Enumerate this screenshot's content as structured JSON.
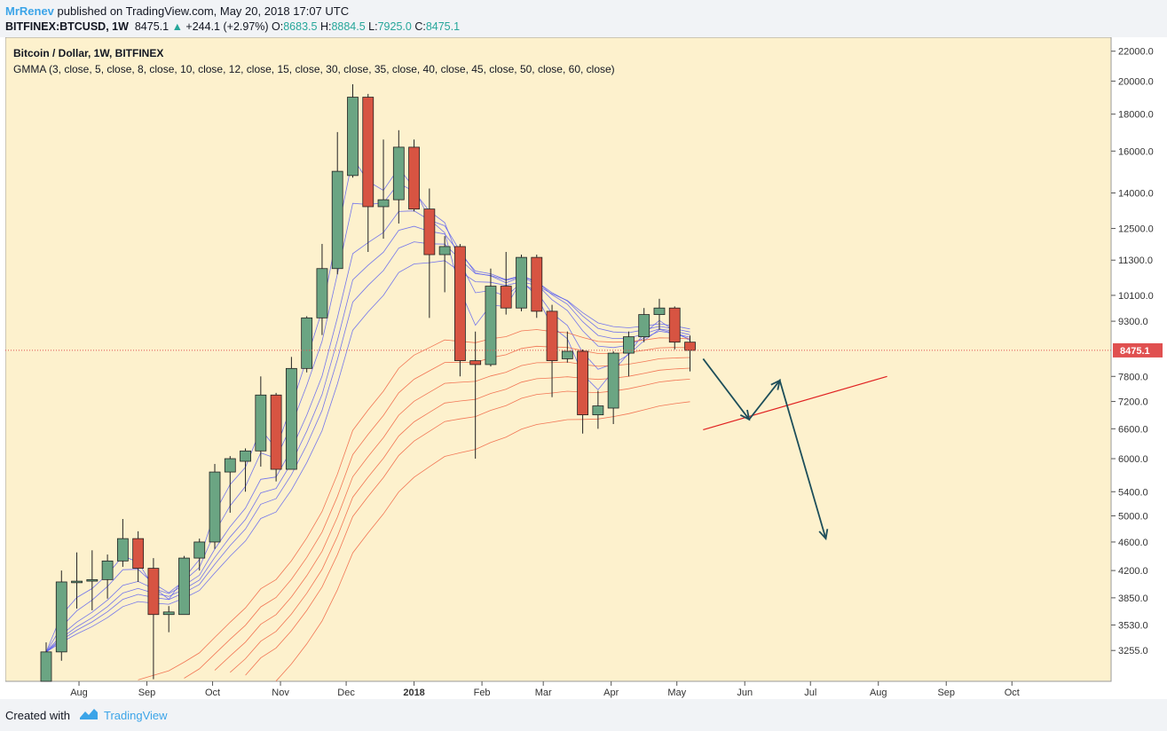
{
  "header": {
    "author": "MrRenev",
    "published_text": "published on TradingView.com, May 20, 2018 17:07 UTC",
    "symbol": "BITFINEX:BTCUSD, 1W",
    "last_price": "8475.1",
    "change": "+244.1 (+2.97%)",
    "open_label": "O:",
    "open_value": "8683.5",
    "high_label": "H:",
    "high_value": "8884.5",
    "low_label": "L:",
    "low_value": "7925.0",
    "close_label": "C:",
    "close_value": "8475.1"
  },
  "footer": {
    "created_label": "Created with",
    "brand": "TradingView"
  },
  "colors": {
    "background": "#fdf1cd",
    "up_candle": "#6ba583",
    "down_candle": "#d75442",
    "fast_ma": "#5a5ff0",
    "slow_ma": "#f06040",
    "projection": "#1d4e5a",
    "trendline": "#e02020",
    "price_line": "#e05050"
  },
  "chart_data": {
    "type": "candlestick",
    "title": "Bitcoin / Dollar, 1W, BITFINEX",
    "indicator": "GMMA (3, close, 5, close, 8, close, 10, close, 12, close, 15, close, 30, close, 35, close, 40, close, 45, close, 50, close, 60, close)",
    "y_scale": "log",
    "ylim": [
      2950,
      23000
    ],
    "y_ticks": [
      "22000.0",
      "20000.0",
      "18000.0",
      "16000.0",
      "14000.0",
      "12500.0",
      "11300.0",
      "10100.0",
      "9300.0",
      "8475.1",
      "7800.0",
      "7200.0",
      "6600.0",
      "6000.0",
      "5400.0",
      "5000.0",
      "4600.0",
      "4200.0",
      "3850.0",
      "3530.0",
      "3255.0"
    ],
    "x_ticks": [
      "Aug",
      "Sep",
      "Oct",
      "Nov",
      "Dec",
      "2018",
      "Feb",
      "Mar",
      "Apr",
      "May",
      "Jun",
      "Jul",
      "Aug",
      "Sep",
      "Oct"
    ],
    "last_price_label": "8475.1",
    "candles": [
      {
        "date": "2017-07-17",
        "o": 2730,
        "h": 3340,
        "l": 2900,
        "c": 3240
      },
      {
        "date": "2017-07-24",
        "o": 3240,
        "h": 4200,
        "l": 3150,
        "c": 4050
      },
      {
        "date": "2017-07-31",
        "o": 4040,
        "h": 4450,
        "l": 3720,
        "c": 4060
      },
      {
        "date": "2017-08-07",
        "o": 4060,
        "h": 4480,
        "l": 3700,
        "c": 4080
      },
      {
        "date": "2017-08-14",
        "o": 4080,
        "h": 4420,
        "l": 3840,
        "c": 4330
      },
      {
        "date": "2017-08-21",
        "o": 4330,
        "h": 4950,
        "l": 4250,
        "c": 4650
      },
      {
        "date": "2017-08-28",
        "o": 4650,
        "h": 4760,
        "l": 4050,
        "c": 4230
      },
      {
        "date": "2017-09-04",
        "o": 4230,
        "h": 4370,
        "l": 2970,
        "c": 3650
      },
      {
        "date": "2017-09-11",
        "o": 3650,
        "h": 3750,
        "l": 3450,
        "c": 3680
      },
      {
        "date": "2017-09-18",
        "o": 3650,
        "h": 4400,
        "l": 3650,
        "c": 4370
      },
      {
        "date": "2017-09-25",
        "o": 4370,
        "h": 4650,
        "l": 4200,
        "c": 4600
      },
      {
        "date": "2017-10-02",
        "o": 4600,
        "h": 5900,
        "l": 4500,
        "c": 5750
      },
      {
        "date": "2017-10-09",
        "o": 5750,
        "h": 6050,
        "l": 5050,
        "c": 6000
      },
      {
        "date": "2017-10-16",
        "o": 5950,
        "h": 6200,
        "l": 5400,
        "c": 6150
      },
      {
        "date": "2017-10-23",
        "o": 6150,
        "h": 7800,
        "l": 5850,
        "c": 7350
      },
      {
        "date": "2017-10-30",
        "o": 7350,
        "h": 7400,
        "l": 5580,
        "c": 5800
      },
      {
        "date": "2017-11-06",
        "o": 5800,
        "h": 8300,
        "l": 5800,
        "c": 8000
      },
      {
        "date": "2017-11-13",
        "o": 8000,
        "h": 9450,
        "l": 7900,
        "c": 9400
      },
      {
        "date": "2017-11-20",
        "o": 9400,
        "h": 11900,
        "l": 8900,
        "c": 11000
      },
      {
        "date": "2017-11-27",
        "o": 11000,
        "h": 17000,
        "l": 10800,
        "c": 15000
      },
      {
        "date": "2017-12-04",
        "o": 14800,
        "h": 19800,
        "l": 14700,
        "c": 19000
      },
      {
        "date": "2017-12-11",
        "o": 19000,
        "h": 19200,
        "l": 11600,
        "c": 13400
      },
      {
        "date": "2017-12-18",
        "o": 13400,
        "h": 16600,
        "l": 12100,
        "c": 13700
      },
      {
        "date": "2017-12-25",
        "o": 13700,
        "h": 17100,
        "l": 12700,
        "c": 16200
      },
      {
        "date": "2018-01-01",
        "o": 16200,
        "h": 16600,
        "l": 13200,
        "c": 13300
      },
      {
        "date": "2018-01-08",
        "o": 13300,
        "h": 14200,
        "l": 9400,
        "c": 11500
      },
      {
        "date": "2018-01-15",
        "o": 11500,
        "h": 12200,
        "l": 10200,
        "c": 11800
      },
      {
        "date": "2018-01-22",
        "o": 11800,
        "h": 11900,
        "l": 7800,
        "c": 8200
      },
      {
        "date": "2018-01-29",
        "o": 8200,
        "h": 9000,
        "l": 6000,
        "c": 8100
      },
      {
        "date": "2018-02-05",
        "o": 8100,
        "h": 11000,
        "l": 8050,
        "c": 10400
      },
      {
        "date": "2018-02-12",
        "o": 10400,
        "h": 11600,
        "l": 9500,
        "c": 9700
      },
      {
        "date": "2018-02-19",
        "o": 9700,
        "h": 11500,
        "l": 9600,
        "c": 11400
      },
      {
        "date": "2018-02-26",
        "o": 11400,
        "h": 11500,
        "l": 9400,
        "c": 9600
      },
      {
        "date": "2018-03-05",
        "o": 9600,
        "h": 9800,
        "l": 7300,
        "c": 8200
      },
      {
        "date": "2018-03-12",
        "o": 8250,
        "h": 9000,
        "l": 8150,
        "c": 8450
      },
      {
        "date": "2018-03-19",
        "o": 8450,
        "h": 8500,
        "l": 6500,
        "c": 6900
      },
      {
        "date": "2018-03-26",
        "o": 6900,
        "h": 7450,
        "l": 6600,
        "c": 7100
      },
      {
        "date": "2018-04-02",
        "o": 7050,
        "h": 8450,
        "l": 6700,
        "c": 8400
      },
      {
        "date": "2018-04-09",
        "o": 8400,
        "h": 9000,
        "l": 7800,
        "c": 8850
      },
      {
        "date": "2018-04-16",
        "o": 8850,
        "h": 9700,
        "l": 8700,
        "c": 9500
      },
      {
        "date": "2018-04-23",
        "o": 9500,
        "h": 9990,
        "l": 9050,
        "c": 9700
      },
      {
        "date": "2018-04-30",
        "o": 9700,
        "h": 9750,
        "l": 8500,
        "c": 8700
      },
      {
        "date": "2018-05-07",
        "o": 8700,
        "h": 8885,
        "l": 7925,
        "c": 8475
      }
    ],
    "projection_path": [
      {
        "date": "2018-05-13",
        "price": 8250
      },
      {
        "date": "2018-06-03",
        "price": 6800
      },
      {
        "date": "2018-06-17",
        "price": 7700
      },
      {
        "date": "2018-07-08",
        "price": 4650
      }
    ],
    "trendline": [
      {
        "date": "2018-05-13",
        "price": 6580
      },
      {
        "date": "2018-08-05",
        "price": 7800
      }
    ]
  }
}
